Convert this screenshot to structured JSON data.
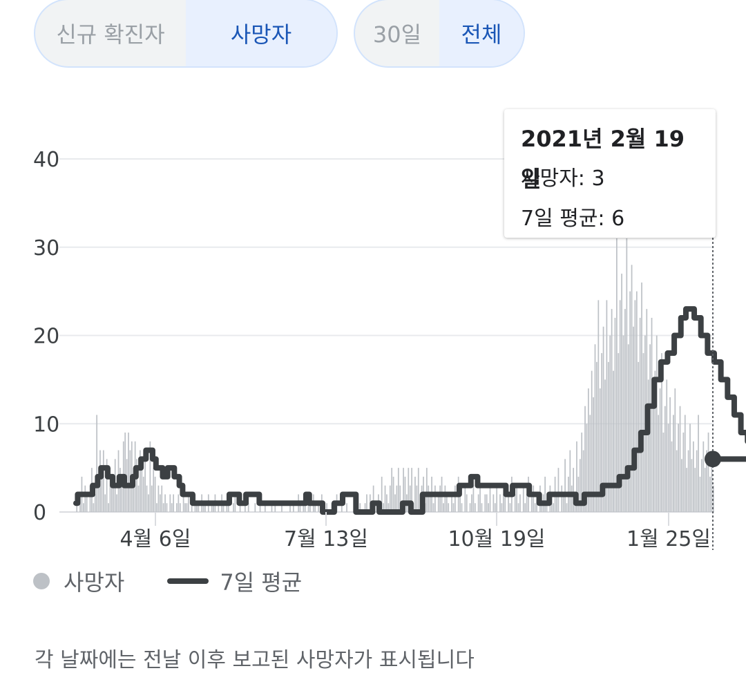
{
  "metric_toggle": {
    "options": [
      "신규 확진자",
      "사망자"
    ],
    "selected": "사망자"
  },
  "range_toggle": {
    "options": [
      "30일",
      "전체"
    ],
    "selected": "전체"
  },
  "tooltip": {
    "date": "2021년 2월 19일",
    "deaths_line": "사망자: 3",
    "avg_line": "7일 평균: 6"
  },
  "legend": {
    "deaths": "사망자",
    "average": "7일 평균"
  },
  "footnote": "각 날짜에는 전날 이후 보고된 사망자가 표시됩니다",
  "colors": {
    "bars": "#bdc1c6",
    "average_line": "#3c4043",
    "accent": "#1a56b6"
  },
  "chart_data": {
    "type": "bar",
    "x_ticks": [
      "4월 6일",
      "7월 13일",
      "10월 19일",
      "1월 25일"
    ],
    "y_ticks": [
      0,
      10,
      20,
      30,
      40
    ],
    "ylim": [
      0,
      40
    ],
    "grid": true,
    "series": [
      {
        "name": "사망자",
        "type": "bar",
        "values": [
          1,
          0,
          2,
          4,
          1,
          3,
          2,
          0,
          3,
          5,
          1,
          2,
          11,
          3,
          7,
          4,
          7,
          2,
          6,
          1,
          5,
          3,
          4,
          6,
          2,
          7,
          5,
          3,
          8,
          9,
          6,
          9,
          7,
          8,
          5,
          8,
          6,
          3,
          7,
          5,
          4,
          6,
          3,
          2,
          8,
          3,
          5,
          4,
          1,
          3,
          2,
          3,
          1,
          2,
          1,
          0,
          2,
          1,
          2,
          0,
          1,
          2,
          1,
          0,
          2,
          1,
          1,
          2,
          0,
          1,
          0,
          2,
          1,
          1,
          0,
          2,
          1,
          1,
          0,
          2,
          0,
          1,
          1,
          2,
          0,
          1,
          0,
          2,
          1,
          0,
          1,
          1,
          0,
          0,
          1,
          2,
          0,
          0,
          1,
          0,
          0,
          1,
          0,
          1,
          0,
          0,
          0,
          1,
          0,
          0,
          1,
          0,
          0,
          1,
          0,
          0,
          0,
          1,
          0,
          1,
          0,
          0,
          0,
          1,
          0,
          0,
          0,
          0,
          1,
          0,
          1,
          0,
          0,
          2,
          1,
          0,
          1,
          2,
          0,
          1,
          1,
          0,
          2,
          1,
          0,
          1,
          0,
          2,
          1,
          0,
          1,
          0,
          0,
          1,
          0,
          0,
          2,
          0,
          0,
          1,
          0,
          0,
          1,
          0,
          0,
          0,
          0,
          1,
          0,
          0,
          1,
          0,
          0,
          1,
          2,
          0,
          2,
          1,
          3,
          0,
          1,
          2,
          0,
          4,
          1,
          3,
          2,
          1,
          3,
          5,
          4,
          2,
          3,
          5,
          3,
          1,
          5,
          4,
          2,
          5,
          3,
          5,
          1,
          4,
          3,
          5,
          2,
          3,
          4,
          1,
          5,
          3,
          2,
          4,
          1,
          3,
          0,
          2,
          3,
          4,
          1,
          3,
          2,
          1,
          0,
          2,
          1,
          3,
          0,
          4,
          2,
          1,
          0,
          3,
          2,
          0,
          1,
          2,
          3,
          1,
          0,
          2,
          3,
          1,
          0,
          2,
          2,
          1,
          3,
          0,
          2,
          1,
          3,
          0,
          2,
          1,
          2,
          3,
          0,
          2,
          1,
          4,
          0,
          2,
          3,
          1,
          2,
          0,
          3,
          1,
          2,
          4,
          0,
          2,
          3,
          1,
          2,
          0,
          3,
          1,
          2,
          4,
          1,
          0,
          3,
          2,
          1,
          4,
          2,
          5,
          0,
          3,
          2,
          6,
          1,
          4,
          7,
          3,
          5,
          2,
          8,
          4,
          6,
          9,
          7,
          12,
          10,
          14,
          11,
          16,
          13,
          19,
          17,
          24,
          14,
          18,
          21,
          15,
          24,
          17,
          20,
          23,
          16,
          22,
          31,
          18,
          24,
          27,
          20,
          23,
          31,
          19,
          25,
          28,
          21,
          24,
          25,
          17,
          22,
          26,
          18,
          20,
          23,
          15,
          19,
          22,
          13,
          16,
          20,
          11,
          14,
          18,
          9,
          12,
          15,
          10,
          13,
          8,
          11,
          14,
          7,
          10,
          12,
          6,
          9,
          11,
          5,
          7,
          10,
          6,
          8,
          5,
          7,
          11,
          4,
          6,
          8,
          5,
          7,
          9,
          4,
          6,
          3
        ],
        "color": "#bdc1c6"
      },
      {
        "name": "7일 평균",
        "type": "line",
        "steps": [
          [
            0,
            1
          ],
          [
            1,
            2
          ],
          [
            10,
            3
          ],
          [
            13,
            4
          ],
          [
            15,
            5
          ],
          [
            19,
            4
          ],
          [
            22,
            3
          ],
          [
            26,
            4
          ],
          [
            29,
            3
          ],
          [
            34,
            4
          ],
          [
            36,
            5
          ],
          [
            39,
            6
          ],
          [
            42,
            7
          ],
          [
            46,
            6
          ],
          [
            48,
            5
          ],
          [
            52,
            4
          ],
          [
            55,
            5
          ],
          [
            59,
            4
          ],
          [
            62,
            3
          ],
          [
            64,
            2
          ],
          [
            70,
            1
          ],
          [
            92,
            2
          ],
          [
            98,
            1
          ],
          [
            102,
            2
          ],
          [
            110,
            1
          ],
          [
            138,
            2
          ],
          [
            140,
            1
          ],
          [
            148,
            0
          ],
          [
            155,
            1
          ],
          [
            160,
            2
          ],
          [
            168,
            0
          ],
          [
            178,
            1
          ],
          [
            182,
            0
          ],
          [
            196,
            1
          ],
          [
            201,
            0
          ],
          [
            208,
            2
          ],
          [
            230,
            3
          ],
          [
            237,
            4
          ],
          [
            241,
            3
          ],
          [
            258,
            2
          ],
          [
            262,
            3
          ],
          [
            272,
            2
          ],
          [
            278,
            1
          ],
          [
            284,
            2
          ],
          [
            300,
            1
          ],
          [
            305,
            2
          ],
          [
            316,
            3
          ],
          [
            326,
            4
          ],
          [
            331,
            5
          ],
          [
            335,
            7
          ],
          [
            339,
            9
          ],
          [
            343,
            12
          ],
          [
            347,
            15
          ],
          [
            351,
            17
          ],
          [
            355,
            18
          ],
          [
            359,
            20
          ],
          [
            363,
            22
          ],
          [
            366,
            23
          ],
          [
            371,
            22
          ],
          [
            375,
            20
          ],
          [
            379,
            18
          ],
          [
            383,
            17
          ],
          [
            387,
            15
          ],
          [
            391,
            13
          ],
          [
            395,
            11
          ],
          [
            399,
            9
          ],
          [
            403,
            8
          ],
          [
            407,
            7
          ],
          [
            411,
            6
          ]
        ],
        "values_last": 6,
        "color": "#3c4043"
      }
    ]
  }
}
